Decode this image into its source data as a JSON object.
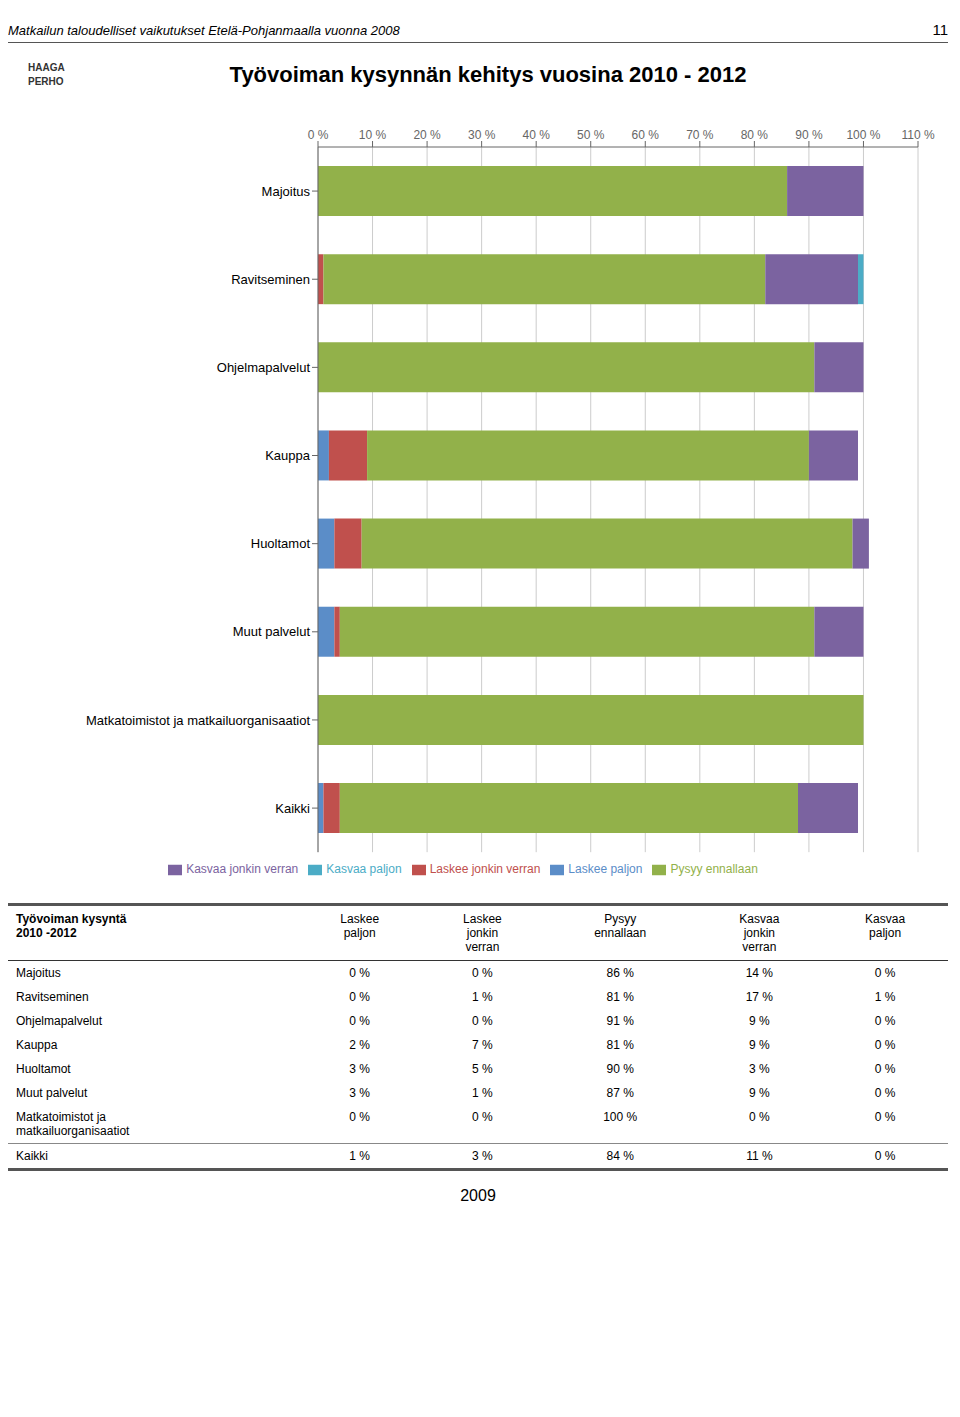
{
  "chart_data": {
    "type": "bar",
    "title": "Työvoiman kysynnän kehitys vuosina 2010 - 2012",
    "orientation": "horizontal",
    "stacked": true,
    "grid": true,
    "legend": "bottom",
    "categories": [
      "Majoitus",
      "Ravitseminen",
      "Ohjelmapalvelut",
      "Kauppa",
      "Huoltamot",
      "Muut palvelut",
      "Matkatoimistot  ja matkailuorganisaatiot",
      "Kaikki"
    ],
    "series": [
      {
        "name": "Laskee paljon",
        "color": "#5b8dc8",
        "values": [
          0,
          0,
          0,
          2,
          3,
          3,
          0,
          1
        ]
      },
      {
        "name": "Laskee jonkin verran",
        "color": "#c0504d",
        "values": [
          0,
          1,
          0,
          7,
          5,
          1,
          0,
          3
        ]
      },
      {
        "name": "Pysyy ennallaan",
        "color": "#92b14a",
        "values": [
          86,
          81,
          91,
          81,
          90,
          87,
          100,
          84
        ]
      },
      {
        "name": "Kasvaa jonkin verran",
        "color": "#7b63a0",
        "values": [
          14,
          17,
          9,
          9,
          3,
          9,
          0,
          11
        ]
      },
      {
        "name": "Kasvaa paljon",
        "color": "#4bacc6",
        "values": [
          0,
          1,
          0,
          0,
          0,
          0,
          0,
          0
        ]
      }
    ],
    "xlim": [
      0,
      110
    ],
    "xticks": [
      {
        "value": 0,
        "label": "0 %"
      },
      {
        "value": 10,
        "label": "10 %"
      },
      {
        "value": 20,
        "label": "20 %"
      },
      {
        "value": 30,
        "label": "30 %"
      },
      {
        "value": 40,
        "label": "40 %"
      },
      {
        "value": 50,
        "label": "50 %"
      },
      {
        "value": 60,
        "label": "60 %"
      },
      {
        "value": 70,
        "label": "70 %"
      },
      {
        "value": 80,
        "label": "80 %"
      },
      {
        "value": 90,
        "label": "90 %"
      },
      {
        "value": 100,
        "label": "100 %"
      },
      {
        "value": 110,
        "label": "110 %"
      }
    ],
    "annotations": [
      "Matkailun taloudelliset vaikutukset Etelä-Pohjanmaalla vuonna 2008",
      "11",
      "HAAGA",
      "PERHO",
      "2009"
    ],
    "table": {
      "columns": [
        "Työvoiman kysyntä\n2010 -2012",
        "Laskee\npaljon",
        "Laskee\njonkin\nverran",
        "Pysyy\nennallaan",
        "Kasvaa\njonkin\nverran",
        "Kasvaa\npaljon"
      ],
      "rows": [
        [
          "Majoitus",
          "0 %",
          "0 %",
          "86 %",
          "14 %",
          "0 %"
        ],
        [
          "Ravitseminen",
          "0 %",
          "1 %",
          "81 %",
          "17 %",
          "1 %"
        ],
        [
          "Ohjelmapalvelut",
          "0 %",
          "0 %",
          "91 %",
          "9 %",
          "0 %"
        ],
        [
          "Kauppa",
          "2 %",
          "7 %",
          "81 %",
          "9 %",
          "0 %"
        ],
        [
          "Huoltamot",
          "3 %",
          "5 %",
          "90 %",
          "3 %",
          "0 %"
        ],
        [
          "Muut palvelut",
          "3 %",
          "1 %",
          "87 %",
          "9 %",
          "0 %"
        ],
        [
          "Matkatoimistot ja\nmatkailuorganisaatiot",
          "0 %",
          "0 %",
          "100 %",
          "0 %",
          "0 %"
        ],
        [
          "Kaikki",
          "1 %",
          "3 %",
          "84 %",
          "11 %",
          "0 %"
        ]
      ]
    }
  }
}
